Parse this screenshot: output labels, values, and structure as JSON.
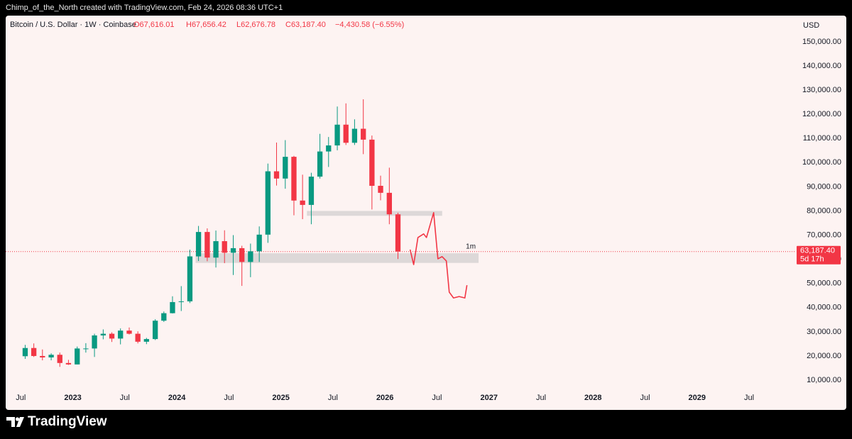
{
  "header": {
    "attribution": "Chimp_of_the_North created with TradingView.com, Feb 24, 2026 08:36 UTC+1"
  },
  "footer": {
    "brand": "TradingView"
  },
  "chart_data": {
    "type": "candlestick",
    "title": "Bitcoin / U.S. Dollar · 1W · Coinbase",
    "stats": [
      "O67,616.01",
      "H67,656.42",
      "L62,676.78",
      "C63,187.40",
      "−4,430.58 (−6.55%)"
    ],
    "y_axis_label": "USD",
    "up_color": "#089981",
    "down_color": "#f23645",
    "x": [
      2022.542,
      2022.625,
      2022.708,
      2022.792,
      2022.875,
      2022.958,
      2023.042,
      2023.125,
      2023.208,
      2023.292,
      2023.375,
      2023.458,
      2023.542,
      2023.625,
      2023.708,
      2023.792,
      2023.875,
      2023.958,
      2024.042,
      2024.125,
      2024.208,
      2024.292,
      2024.375,
      2024.458,
      2024.542,
      2024.625,
      2024.708,
      2024.792,
      2024.875,
      2024.958,
      2025.042,
      2025.125,
      2025.208,
      2025.292,
      2025.375,
      2025.458,
      2025.542,
      2025.625,
      2025.708,
      2025.792,
      2025.875,
      2025.958,
      2026.042,
      2026.125
    ],
    "open": [
      19900,
      23300,
      20000,
      19400,
      20500,
      17100,
      16500,
      23100,
      23100,
      28500,
      29200,
      27200,
      30500,
      29200,
      25900,
      27000,
      34600,
      37700,
      42300,
      42600,
      61200,
      71300,
      60700,
      67500,
      62700,
      64600,
      58900,
      63300,
      70200,
      96400,
      93400,
      102400,
      84300,
      82500,
      94200,
      104600,
      107100,
      115700,
      108200,
      114000,
      109500,
      90400,
      87500,
      78600
    ],
    "high": [
      24600,
      25200,
      22700,
      21100,
      21400,
      18400,
      23900,
      25300,
      29200,
      31000,
      29800,
      31400,
      31800,
      30200,
      27500,
      35200,
      38400,
      44700,
      48900,
      64000,
      73800,
      72800,
      71900,
      72000,
      70000,
      65600,
      66500,
      73600,
      99600,
      108300,
      109300,
      102800,
      95000,
      95800,
      111900,
      110600,
      123200,
      124500,
      117900,
      126200,
      111200,
      94600,
      97900,
      79300
    ],
    "low": [
      18800,
      19600,
      18200,
      18200,
      15500,
      16300,
      16500,
      21400,
      19600,
      26900,
      25800,
      24800,
      28900,
      25200,
      24900,
      26600,
      34100,
      37600,
      38600,
      41900,
      59300,
      59200,
      56600,
      58400,
      53500,
      49000,
      52600,
      58900,
      66800,
      90500,
      89200,
      78200,
      76600,
      74500,
      93400,
      98200,
      105100,
      107300,
      107300,
      103500,
      80600,
      84400,
      74500,
      60100
    ],
    "close": [
      23300,
      20000,
      19400,
      20500,
      17100,
      16500,
      23100,
      23100,
      28500,
      29200,
      27200,
      30500,
      29200,
      25900,
      27000,
      34600,
      37700,
      42300,
      42600,
      61200,
      71300,
      60700,
      67500,
      62700,
      64600,
      58900,
      63300,
      70200,
      96400,
      93400,
      102400,
      84300,
      82500,
      94200,
      104600,
      107100,
      115700,
      108200,
      114000,
      109500,
      90400,
      87500,
      78600,
      63187.4
    ],
    "last_price": {
      "value": 63187.4,
      "label": "63,187.40"
    },
    "countdown": "5d 17h",
    "zones": [
      {
        "x": [
          2025.25,
          2026.55
        ],
        "y": [
          78000,
          80000
        ],
        "color": "#d9d5d5"
      },
      {
        "x": [
          2024.18,
          2026.9
        ],
        "y": [
          58500,
          62500
        ],
        "color": "#d9d5d5",
        "label": "1m"
      }
    ],
    "projection": {
      "color": "#f23645",
      "x": [
        2026.242,
        2026.276,
        2026.317,
        2026.372,
        2026.399,
        2026.468,
        2026.509,
        2026.549,
        2026.59,
        2026.618,
        2026.659,
        2026.713,
        2026.768,
        2026.788
      ],
      "values": [
        64000,
        57800,
        69000,
        70500,
        69000,
        79300,
        60200,
        61100,
        59300,
        46400,
        44000,
        44600,
        44000,
        49300
      ]
    },
    "xlim": [
      2022.3,
      2029.95
    ],
    "ylim": [
      5900,
      161400
    ],
    "xticks": [
      {
        "value": 2022.5,
        "label": "Jul"
      },
      2023,
      {
        "value": 2023.5,
        "label": "Jul"
      },
      2024,
      {
        "value": 2024.5,
        "label": "Jul"
      },
      2025,
      {
        "value": 2025.5,
        "label": "Jul"
      },
      2026,
      {
        "value": 2026.5,
        "label": "Jul"
      },
      2027,
      {
        "value": 2027.5,
        "label": "Jul"
      },
      2028,
      {
        "value": 2028.5,
        "label": "Jul"
      },
      2029,
      {
        "value": 2029.5,
        "label": "Jul"
      }
    ],
    "yticks": [
      {
        "value": 10000,
        "label": "10,000.00"
      },
      {
        "value": 20000,
        "label": "20,000.00"
      },
      {
        "value": 30000,
        "label": "30,000.00"
      },
      {
        "value": 40000,
        "label": "40,000.00"
      },
      {
        "value": 50000,
        "label": "50,000.00"
      },
      {
        "value": 60000,
        "label": "60,000.00"
      },
      {
        "value": 70000,
        "label": "70,000.00"
      },
      {
        "value": 80000,
        "label": "80,000.00"
      },
      {
        "value": 90000,
        "label": "90,000.00"
      },
      {
        "value": 100000,
        "label": "100,000.00"
      },
      {
        "value": 110000,
        "label": "110,000.00"
      },
      {
        "value": 120000,
        "label": "120,000.00"
      },
      {
        "value": 130000,
        "label": "130,000.00"
      },
      {
        "value": 140000,
        "label": "140,000.00"
      },
      {
        "value": 150000,
        "label": "150,000.00"
      }
    ]
  }
}
